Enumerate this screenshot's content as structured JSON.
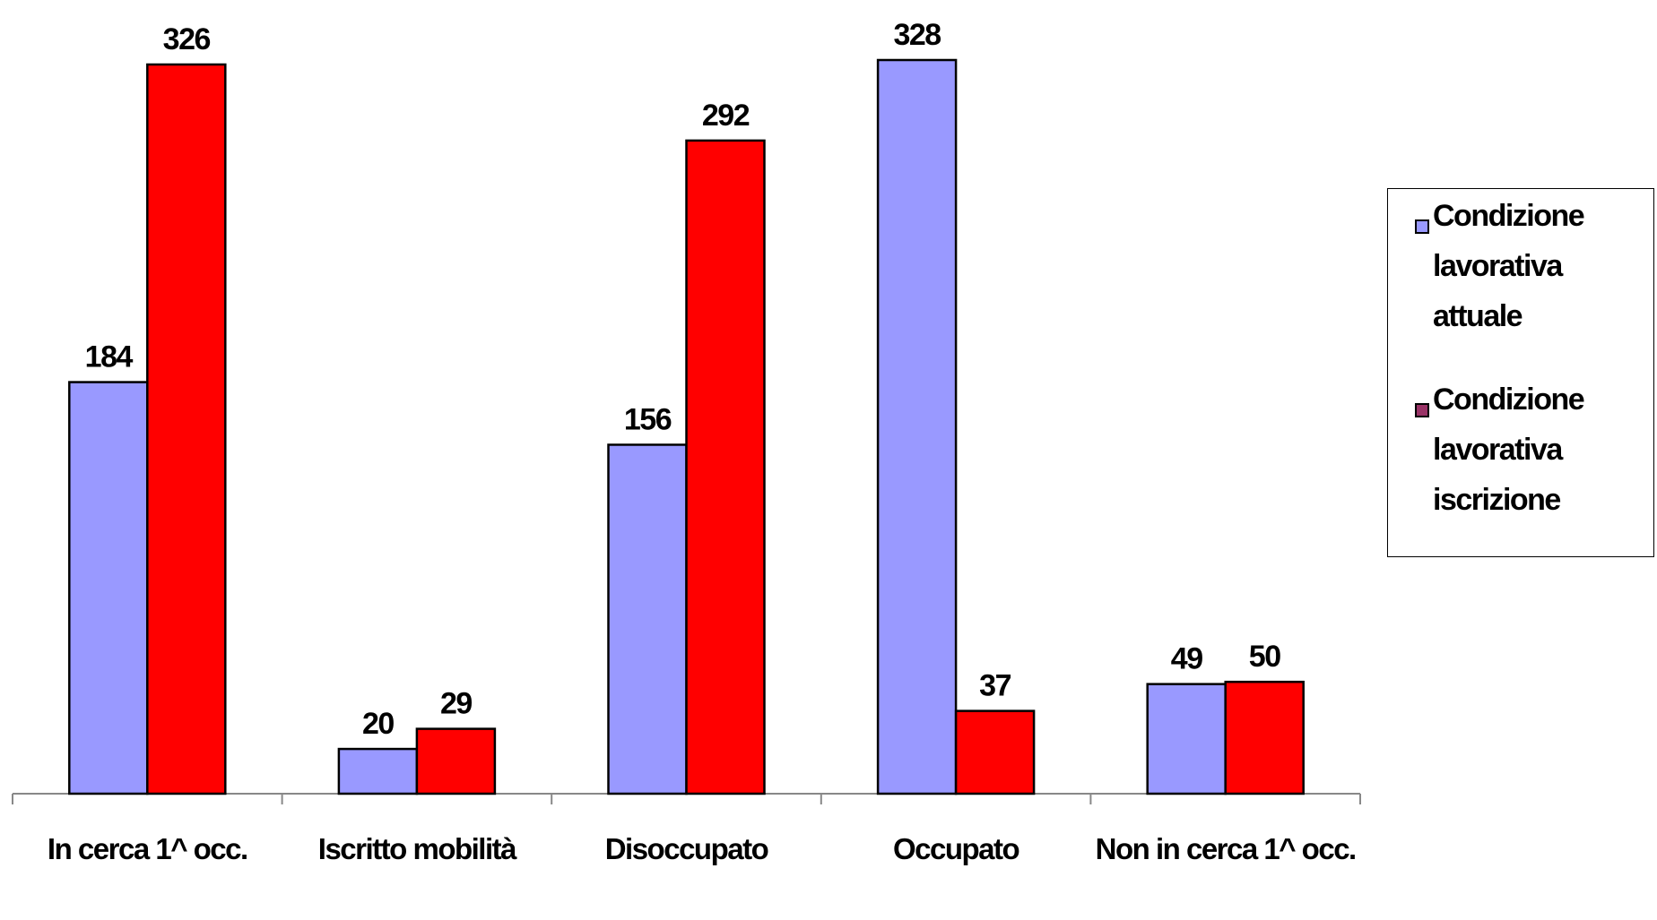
{
  "chart_data": {
    "type": "bar",
    "categories": [
      "In cerca 1^ occ.",
      "Iscritto mobilità",
      "Disoccupato",
      "Occupato",
      "Non in cerca 1^ occ."
    ],
    "series": [
      {
        "name": "Condizione lavorativa attuale",
        "color": "#9999ff",
        "legend_color": "#9999ff",
        "values": [
          184,
          20,
          156,
          328,
          49
        ]
      },
      {
        "name": "Condizione lavorativa iscrizione",
        "color": "#ff0000",
        "legend_color": "#993366",
        "values": [
          326,
          29,
          292,
          37,
          50
        ]
      }
    ],
    "legend": "right"
  }
}
